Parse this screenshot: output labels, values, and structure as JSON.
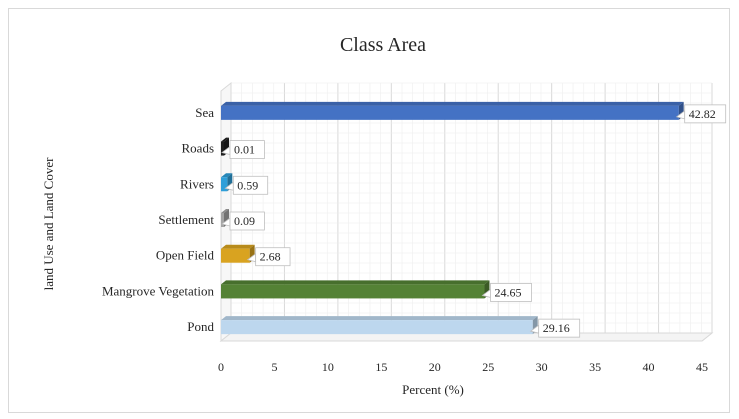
{
  "chart_data": {
    "type": "bar",
    "orientation": "horizontal",
    "title": "Class Area",
    "xlabel": "Percent (%)",
    "ylabel": "land Use and Land Cover",
    "xlim": [
      0,
      45
    ],
    "xticks": [
      "0",
      "5",
      "10",
      "15",
      "20",
      "25",
      "30",
      "35",
      "40",
      "45"
    ],
    "grid": true,
    "categories": [
      "Sea",
      "Roads",
      "Rivers",
      "Settlement",
      "Open Field",
      "Mangrove Vegetation",
      "Pond"
    ],
    "values": [
      42.82,
      0.01,
      0.59,
      0.09,
      2.68,
      24.65,
      29.16
    ],
    "value_labels": [
      "42.82",
      "0.01",
      "0.59",
      "0.09",
      "2.68",
      "24.65",
      "29.16"
    ],
    "colors": [
      "#4472c4",
      "#1f1f1f",
      "#2e9fd9",
      "#a5a5a5",
      "#d9a320",
      "#548235",
      "#bdd7ee"
    ]
  }
}
